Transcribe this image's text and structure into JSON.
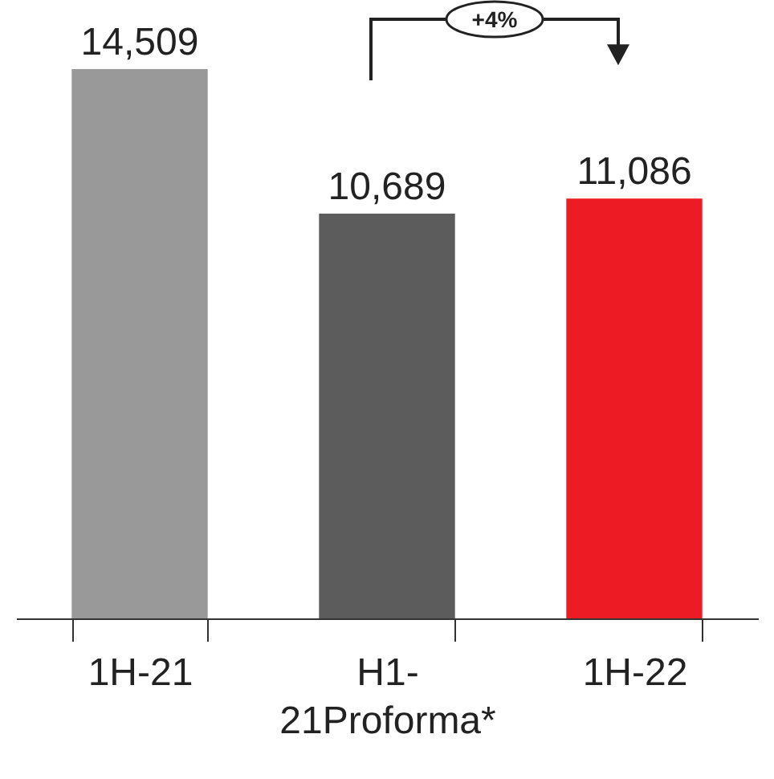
{
  "chart_data": {
    "type": "bar",
    "categories": [
      "1H-21",
      "H1-21Proforma*",
      "1H-22"
    ],
    "values": [
      14509,
      10689,
      11086
    ],
    "colors": [
      "#999999",
      "#5c5c5c",
      "#ed1c24"
    ],
    "value_labels": [
      "14,509",
      "10,689",
      "11,086"
    ],
    "annotations": [
      "+4%"
    ]
  }
}
